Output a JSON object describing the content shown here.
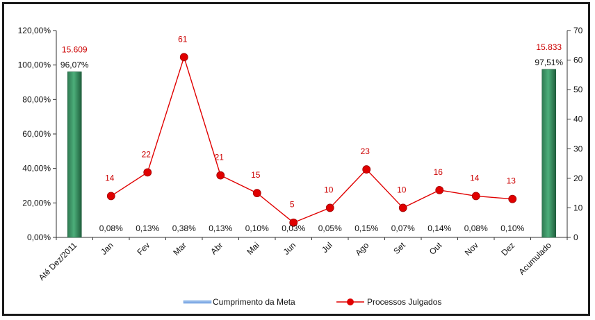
{
  "chart_data": {
    "type": "bar-line-combo",
    "categories": [
      "Até Dez/2011",
      "Jan",
      "Fev",
      "Mar",
      "Abr",
      "Mai",
      "Jun",
      "Jul",
      "Ago",
      "Set",
      "Out",
      "Nov",
      "Dez",
      "Acumulado"
    ],
    "series": [
      {
        "name": "Cumprimento da Meta",
        "type": "bar",
        "axis": "left",
        "color": "#3f9a68",
        "values": [
          96.07,
          null,
          null,
          null,
          null,
          null,
          null,
          null,
          null,
          null,
          null,
          null,
          null,
          97.51
        ],
        "value_labels": [
          "96,07%",
          "",
          "",
          "",
          "",
          "",
          "",
          "",
          "",
          "",
          "",
          "",
          "",
          "97,51%"
        ]
      },
      {
        "name": "Processos Julgados",
        "type": "line",
        "axis": "right",
        "color": "#e00000",
        "values": [
          null,
          14,
          22,
          61,
          21,
          15,
          5,
          10,
          23,
          10,
          16,
          14,
          13,
          null
        ],
        "value_labels": [
          "",
          "14",
          "22",
          "61",
          "21",
          "15",
          "5",
          "10",
          "23",
          "10",
          "16",
          "14",
          "13",
          ""
        ]
      }
    ],
    "monthly_percent_labels": [
      "",
      "0,08%",
      "0,13%",
      "0,38%",
      "0,13%",
      "0,10%",
      "0,03%",
      "0,05%",
      "0,15%",
      "0,07%",
      "0,14%",
      "0,08%",
      "0,10%",
      ""
    ],
    "bar_count_labels": [
      "15.609",
      "",
      "",
      "",
      "",
      "",
      "",
      "",
      "",
      "",
      "",
      "",
      "",
      "15.833"
    ],
    "y_left": {
      "ticks": [
        "0,00%",
        "20,00%",
        "40,00%",
        "60,00%",
        "80,00%",
        "100,00%",
        "120,00%"
      ],
      "range": [
        0,
        120
      ]
    },
    "y_right": {
      "ticks": [
        "0",
        "10",
        "20",
        "30",
        "40",
        "50",
        "60",
        "70"
      ],
      "range": [
        0,
        70
      ]
    },
    "legend": {
      "placement": "bottom-center",
      "items": [
        "Cumprimento da Meta",
        "Processos Julgados"
      ]
    },
    "grid": false
  }
}
